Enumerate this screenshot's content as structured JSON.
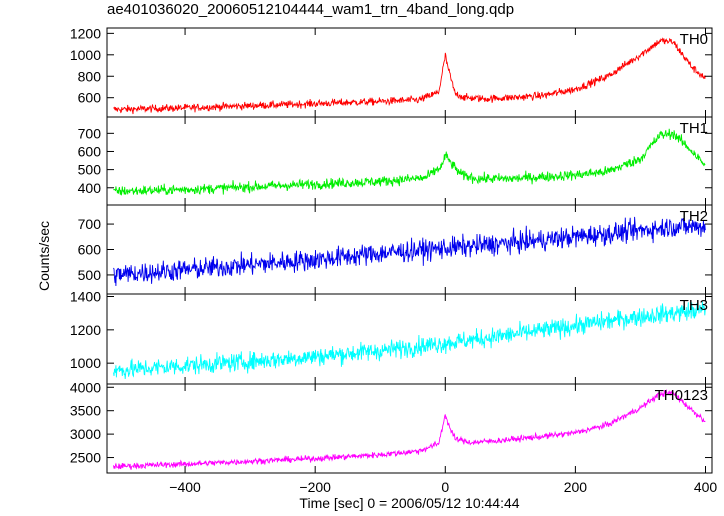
{
  "chart_data": {
    "type": "line",
    "title": "ae401036020_20060512104444_wam1_trn_4band_long.qdp",
    "xlabel": "Time [sec] 0 = 2006/05/12 10:44:44",
    "ylabel": "Counts/sec",
    "xlim": [
      -520,
      410
    ],
    "xticks": [
      -400,
      -200,
      0,
      200,
      400
    ],
    "xtick_labels": [
      "−400",
      "−200",
      "0",
      "200",
      "400"
    ],
    "grid": false,
    "panels": [
      {
        "name": "TH0",
        "color": "#ff0000",
        "ylim": [
          420,
          1250
        ],
        "yticks": [
          600,
          800,
          1000,
          1200
        ],
        "noise": 25,
        "x": [
          -510,
          -400,
          -300,
          -200,
          -100,
          -40,
          -10,
          0,
          5,
          15,
          30,
          60,
          100,
          150,
          200,
          250,
          300,
          330,
          350,
          380,
          400
        ],
        "values": [
          490,
          505,
          525,
          545,
          565,
          580,
          650,
          990,
          860,
          640,
          600,
          590,
          600,
          620,
          680,
          800,
          1000,
          1130,
          1120,
          880,
          780
        ]
      },
      {
        "name": "TH1",
        "color": "#00ee00",
        "ylim": [
          305,
          790
        ],
        "yticks": [
          400,
          500,
          600,
          700
        ],
        "noise": 20,
        "x": [
          -510,
          -400,
          -300,
          -200,
          -100,
          -30,
          -5,
          0,
          10,
          25,
          50,
          100,
          150,
          200,
          250,
          300,
          330,
          350,
          380,
          400
        ],
        "values": [
          380,
          390,
          405,
          420,
          435,
          455,
          520,
          580,
          530,
          470,
          450,
          450,
          460,
          470,
          490,
          560,
          690,
          700,
          600,
          520
        ]
      },
      {
        "name": "TH2",
        "color": "#0000ee",
        "ylim": [
          425,
          775
        ],
        "yticks": [
          500,
          600,
          700
        ],
        "noise": 30,
        "x": [
          -510,
          -400,
          -300,
          -200,
          -100,
          0,
          100,
          200,
          300,
          350,
          400
        ],
        "values": [
          500,
          520,
          540,
          560,
          585,
          605,
          625,
          650,
          675,
          690,
          690
        ]
      },
      {
        "name": "TH3",
        "color": "#00ffff",
        "ylim": [
          875,
          1415
        ],
        "yticks": [
          1000,
          1200,
          1400
        ],
        "noise": 40,
        "x": [
          -510,
          -400,
          -300,
          -200,
          -100,
          0,
          100,
          200,
          300,
          400
        ],
        "values": [
          955,
          985,
          1010,
          1040,
          1075,
          1120,
          1170,
          1225,
          1280,
          1320
        ]
      },
      {
        "name": "TH0123",
        "color": "#ff00ff",
        "ylim": [
          2170,
          4070
        ],
        "yticks": [
          2500,
          3000,
          3500,
          4000
        ],
        "noise": 45,
        "x": [
          -510,
          -400,
          -300,
          -200,
          -100,
          -40,
          -10,
          0,
          5,
          15,
          40,
          80,
          150,
          200,
          250,
          300,
          330,
          350,
          380,
          400
        ],
        "values": [
          2310,
          2360,
          2420,
          2480,
          2560,
          2640,
          2800,
          3420,
          3200,
          2900,
          2820,
          2860,
          2950,
          3030,
          3200,
          3560,
          3860,
          3880,
          3500,
          3280
        ]
      }
    ]
  }
}
